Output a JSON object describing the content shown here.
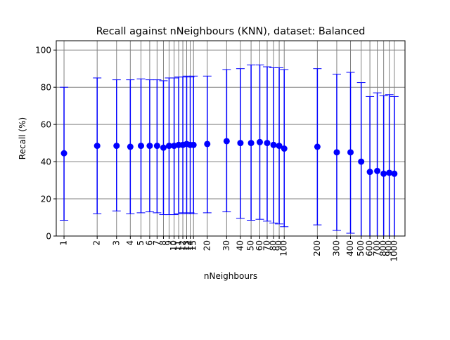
{
  "chart_data": {
    "type": "scatter",
    "title": "Recall against nNeighbours (KNN), dataset: Balanced",
    "xlabel": "nNeighbours",
    "ylabel": "Recall (%)",
    "x_scale": "log",
    "xlim": [
      0.85,
      1250
    ],
    "ylim": [
      0,
      105
    ],
    "grid": true,
    "x": [
      1,
      2,
      3,
      4,
      5,
      6,
      7,
      8,
      9,
      10,
      11,
      12,
      13,
      14,
      15,
      20,
      30,
      40,
      50,
      60,
      70,
      80,
      90,
      100,
      200,
      300,
      400,
      500,
      600,
      700,
      800,
      900,
      1000
    ],
    "x_tick_labels": [
      "1",
      "2",
      "3",
      "4",
      "5",
      "6",
      "7",
      "8",
      "9",
      "10",
      "11",
      "12",
      "13",
      "14",
      "15",
      "20",
      "30",
      "40",
      "50",
      "60",
      "70",
      "80",
      "90",
      "100",
      "200",
      "300",
      "400",
      "500",
      "600",
      "700",
      "800",
      "900",
      "1000"
    ],
    "y_ticks": [
      0,
      20,
      40,
      60,
      80,
      100
    ],
    "y_tick_labels": [
      "0",
      "20",
      "40",
      "60",
      "80",
      "100"
    ],
    "series": [
      {
        "color": "#0000ff",
        "marker": "circle",
        "values": [
          44.5,
          48.5,
          48.5,
          48.0,
          48.5,
          48.5,
          48.5,
          47.5,
          48.5,
          48.5,
          49.0,
          49.0,
          49.5,
          49.0,
          49.0,
          49.5,
          51.0,
          50.0,
          50.0,
          50.5,
          50.0,
          49.0,
          48.5,
          47.0,
          48.0,
          45.0,
          45.0,
          40.0,
          34.5,
          35.0,
          33.5,
          34.0,
          33.5
        ],
        "error_low": [
          8.5,
          12.0,
          13.5,
          12.0,
          12.5,
          13.0,
          12.5,
          11.5,
          11.5,
          11.5,
          12.0,
          12.5,
          12.0,
          12.5,
          12.0,
          12.5,
          13.0,
          9.5,
          8.5,
          9.0,
          8.0,
          7.0,
          6.5,
          5.0,
          6.0,
          3.0,
          1.5,
          -3.0,
          -6.0,
          -7.0,
          -8.0,
          -8.0,
          -8.0
        ],
        "error_high": [
          80.0,
          85.0,
          84.0,
          84.0,
          84.5,
          84.0,
          84.0,
          83.5,
          85.0,
          85.0,
          85.5,
          85.5,
          86.0,
          85.5,
          86.0,
          86.0,
          89.5,
          90.0,
          92.0,
          92.0,
          91.0,
          90.5,
          90.5,
          89.5,
          90.0,
          87.0,
          88.0,
          82.5,
          75.0,
          77.0,
          75.5,
          76.0,
          75.0
        ]
      }
    ]
  }
}
